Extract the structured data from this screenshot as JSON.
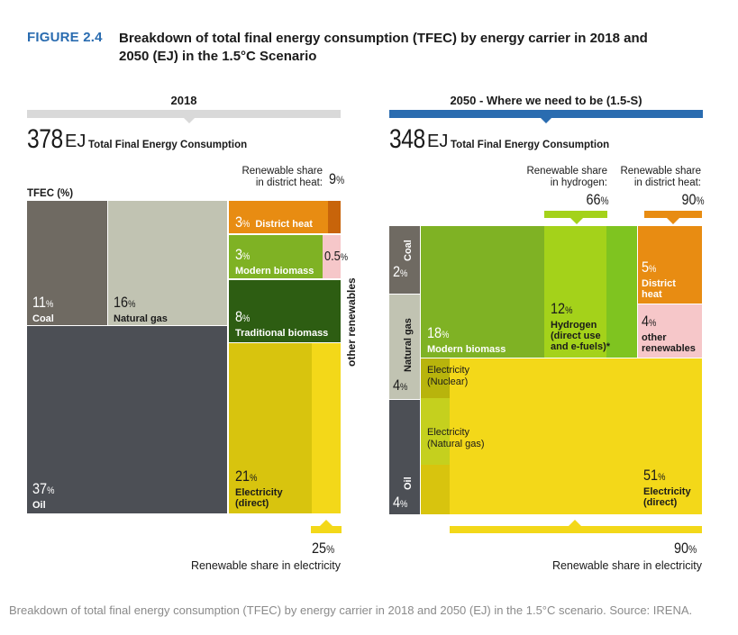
{
  "figure": {
    "label": "FIGURE 2.4",
    "title": "Breakdown of total final energy consumption (TFEC) by energy carrier in 2018 and 2050 (EJ) in the 1.5°C Scenario"
  },
  "caption": "Breakdown of total final energy consumption (TFEC) by energy carrier in 2018 and 2050 (EJ) in the 1.5°C scenario. Source: IRENA.",
  "colors": {
    "coal": "#6f6a62",
    "natural_gas": "#c1c3b2",
    "oil": "#4c4f55",
    "district_heat": "#e88c12",
    "modern_biomass": "#7fb224",
    "traditional_biomass": "#2d5d12",
    "other_renewables": "#f6c7c9",
    "electricity": "#e6cf1c",
    "hydrogen": "#a4d21a",
    "accent_blue": "#2a6cb0"
  },
  "chart_data": [
    {
      "type": "treemap",
      "title": "2018",
      "total_value": "378",
      "total_unit": "EJ",
      "total_label": "Total Final Energy Consumption",
      "axis_label": "TFEC (%)",
      "side_label": "other renewables",
      "segments": [
        {
          "name": "Coal",
          "value": 11
        },
        {
          "name": "Natural gas",
          "value": 16
        },
        {
          "name": "Oil",
          "value": 37
        },
        {
          "name": "District heat",
          "value": 3
        },
        {
          "name": "Modern biomass",
          "value": 3
        },
        {
          "name": "other renewables",
          "value": 0.5
        },
        {
          "name": "Traditional biomass",
          "value": 8
        },
        {
          "name": "Electricity (direct)",
          "value": 21
        }
      ],
      "renewable_shares": [
        {
          "label": "Renewable share in district heat:",
          "value": 9
        },
        {
          "label": "Renewable share in electricity",
          "value": 25
        }
      ]
    },
    {
      "type": "treemap",
      "title": "2050 - Where we need to be (1.5-S)",
      "total_value": "348",
      "total_unit": "EJ",
      "total_label": "Total Final Energy Consumption",
      "segments": [
        {
          "name": "Coal",
          "value": 2
        },
        {
          "name": "Natural gas",
          "value": 4
        },
        {
          "name": "Oil",
          "value": 4
        },
        {
          "name": "Modern biomass",
          "value": 18
        },
        {
          "name": "Hydrogen (direct use and e-fuels)*",
          "value": 12
        },
        {
          "name": "District heat",
          "value": 5
        },
        {
          "name": "other renewables",
          "value": 4
        },
        {
          "name": "Electricity (direct)",
          "value": 51
        }
      ],
      "sub_labels": [
        "Electricity (Nuclear)",
        "Electricity (Natural gas)"
      ],
      "renewable_shares": [
        {
          "label": "Renewable share in hydrogen:",
          "value": 66
        },
        {
          "label": "Renewable share in district heat:",
          "value": 90
        },
        {
          "label": "Renewable share in electricity",
          "value": 90
        }
      ]
    }
  ],
  "labels": {
    "pct": "%",
    "l_coal": "Coal",
    "l_gas": "Natural gas",
    "l_oil": "Oil",
    "l_dh": "District heat",
    "l_mb": "Modern biomass",
    "l_tb": "Traditional biomass",
    "l_elec1": "Electricity",
    "l_elec2": "(direct)",
    "l_other1": "other",
    "l_other2": "renewables",
    "l_h1": "Hydrogen",
    "l_h2": "(direct use",
    "l_h3": "and e-fuels)*",
    "l_dh1": "District",
    "l_dh2": "heat",
    "l_en1": "Electricity",
    "l_en2": "(Nuclear)",
    "l_eg1": "Electricity",
    "l_eg2": "(Natural gas)",
    "rs_dh_1": "Renewable share",
    "rs_dh_2": "in district heat:",
    "rs_h_1": "Renewable share",
    "rs_h_2": "in hydrogen:",
    "rs_elec": "Renewable share in electricity"
  },
  "values": {
    "coal18": "11",
    "gas18": "16",
    "oil18": "37",
    "dh18": "3",
    "mb18": "3",
    "or18": "0.5",
    "tb18": "8",
    "el18": "21",
    "rsdh18": "9",
    "rsel18": "25",
    "coal50": "2",
    "gas50": "4",
    "oil50": "4",
    "mb50": "18",
    "h50": "12",
    "dh50": "5",
    "or50": "4",
    "el50": "51",
    "rsh50": "66",
    "rsdh50": "90",
    "rsel50": "90"
  }
}
